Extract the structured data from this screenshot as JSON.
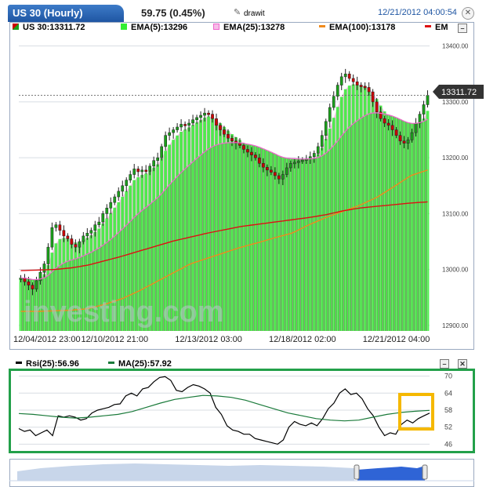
{
  "header": {
    "symbol_tab": "US 30 (Hourly)",
    "change": "59.75 (0.45%)",
    "draw_label": "drawit",
    "datetime": "12/21/2012 04:00:54",
    "close_glyph": "✕"
  },
  "legend": {
    "symbol": "US 30:13311.72",
    "ema5": "EMA(5):13296",
    "ema25": "EMA(25):13278",
    "ema100": "EMA(100):13178",
    "ema_cut": "EM",
    "minimize": "–",
    "close": "✕"
  },
  "rsi_legend": {
    "rsi": "Rsi(25):56.96",
    "ma": "MA(25):57.92",
    "minimize": "–",
    "close": "✕"
  },
  "watermark": "investing.com",
  "colors": {
    "up": "#1aa01a",
    "down": "#cc0000",
    "ema5": "#33ee33",
    "ema25": "#ee66cc",
    "ema100": "#f08a1c",
    "ema200": "#dd1111",
    "area_gray": "#8e9a82",
    "rsi": "#000000",
    "rsi_ma": "#1a7a3a",
    "rsi_frame": "#23a04a",
    "highlight": "#f5b800",
    "price_tag": "#333333"
  },
  "chart_data": [
    {
      "type": "candlestick",
      "title": "US 30 (Hourly)",
      "last_price_label": "13311.72",
      "ylim": [
        12890,
        13415
      ],
      "y_ticks": [
        12900,
        13000,
        13100,
        13200,
        13300,
        13400
      ],
      "y_tick_labels": [
        "12900.00",
        "13000.00",
        "13100.00",
        "13200.00",
        "13300.00",
        "13400.00"
      ],
      "x_tick_labels": [
        "12/04/2012 23:00",
        "12/10/2012 21:00",
        "12/13/2012 03:00",
        "12/18/2012 02:00",
        "12/21/2012 04:00"
      ],
      "x_tick_index": [
        0,
        24,
        48,
        72,
        96
      ],
      "close": [
        12985,
        12978,
        12972,
        12965,
        12980,
        12995,
        13010,
        13040,
        13075,
        13080,
        13070,
        13060,
        13055,
        13045,
        13040,
        13050,
        13060,
        13065,
        13070,
        13080,
        13085,
        13100,
        13110,
        13120,
        13130,
        13140,
        13150,
        13160,
        13170,
        13180,
        13175,
        13178,
        13176,
        13185,
        13195,
        13200,
        13220,
        13240,
        13245,
        13250,
        13255,
        13260,
        13258,
        13262,
        13268,
        13272,
        13276,
        13280,
        13278,
        13270,
        13258,
        13250,
        13242,
        13235,
        13230,
        13226,
        13222,
        13215,
        13210,
        13205,
        13200,
        13190,
        13183,
        13178,
        13174,
        13168,
        13162,
        13170,
        13182,
        13190,
        13192,
        13194,
        13196,
        13198,
        13202,
        13208,
        13220,
        13240,
        13265,
        13290,
        13310,
        13330,
        13345,
        13350,
        13342,
        13336,
        13330,
        13328,
        13326,
        13318,
        13300,
        13282,
        13270,
        13262,
        13258,
        13250,
        13240,
        13230,
        13226,
        13232,
        13245,
        13262,
        13278,
        13295,
        13311.72
      ],
      "series": [
        {
          "name": "EMA(5)",
          "value": 13296
        },
        {
          "name": "EMA(25)",
          "value": 13278
        },
        {
          "name": "EMA(100)",
          "value": 13178
        }
      ],
      "ema100": [
        12925,
        12925,
        12926,
        12927,
        12930,
        12938,
        12948,
        12962,
        12978,
        12994,
        13010,
        13020,
        13030,
        13040,
        13048,
        13057,
        13065,
        13080,
        13093,
        13104,
        13115,
        13129,
        13148,
        13168,
        13178
      ],
      "ema_long": [
        12998,
        12999,
        13000,
        13003,
        13008,
        13016,
        13024,
        13033,
        13042,
        13051,
        13058,
        13065,
        13071,
        13077,
        13081,
        13085,
        13089,
        13093,
        13098,
        13105,
        13110,
        13113,
        13116,
        13119,
        13121
      ]
    },
    {
      "type": "line",
      "title": "Rsi(25)",
      "ylim": [
        45,
        71
      ],
      "y_ticks": [
        46,
        52,
        58,
        64,
        70
      ],
      "series": [
        {
          "name": "Rsi(25)",
          "last": 56.96,
          "values": [
            51.5,
            50.5,
            51,
            49,
            50,
            51,
            49,
            56,
            55.5,
            56,
            55.5,
            54.5,
            55,
            57,
            58,
            58.5,
            59,
            60,
            60.2,
            63,
            64,
            63,
            65.5,
            66,
            68,
            69.5,
            69.8,
            68.5,
            65,
            64.5,
            66,
            67,
            66.5,
            65.5,
            64,
            59,
            56.5,
            52.5,
            51,
            50.5,
            49.5,
            49.5,
            48,
            47.5,
            47,
            46.5,
            46,
            47.5,
            52,
            54,
            53,
            52.5,
            53.5,
            52.5,
            55,
            58.5,
            60.5,
            64,
            65.5,
            63.5,
            64,
            62,
            58.5,
            56,
            52,
            49,
            50,
            49.5,
            53,
            54.5,
            53.5,
            55,
            56,
            56.96
          ]
        },
        {
          "name": "MA(25)",
          "last": 57.92,
          "values": [
            56.8,
            56.5,
            56,
            55.5,
            55.2,
            55.5,
            56,
            56.5,
            57.5,
            59,
            60.5,
            61.8,
            62.5,
            63.2,
            63,
            62.5,
            61.5,
            60,
            58.5,
            57,
            56,
            55,
            54.5,
            54.2,
            54.5,
            55.5,
            56.5,
            57.2,
            57.6,
            57.92
          ]
        }
      ]
    }
  ]
}
